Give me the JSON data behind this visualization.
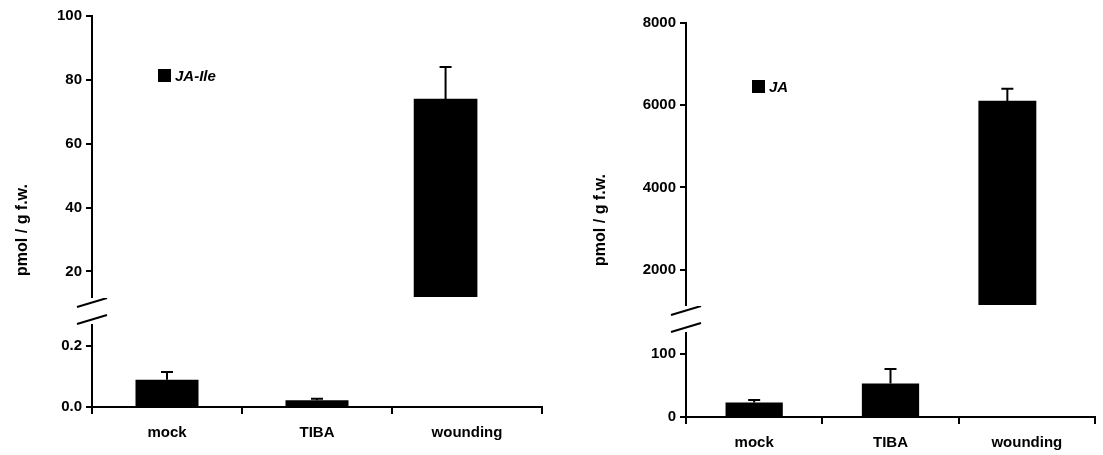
{
  "chart_data": [
    {
      "type": "bar",
      "ylabel": "pmol / g f.w.",
      "categories": [
        "mock",
        "TIBA",
        "wounding"
      ],
      "legend": "top left",
      "tick_labels": "y",
      "ylim": [
        12,
        100
      ],
      "yticks": [
        20,
        40,
        60,
        80,
        100
      ],
      "series": [
        {
          "name": "JA-Ile",
          "color": "#000000",
          "values": [
            null,
            null,
            74
          ],
          "errors": [
            null,
            null,
            [
              74,
              84
            ]
          ]
        }
      ]
    },
    {
      "type": "bar",
      "categories": [
        "mock",
        "TIBA",
        "wounding"
      ],
      "ylim": [
        0,
        0.27
      ],
      "yticks": [
        {
          "value": 0,
          "label": "0.0"
        },
        0.2
      ],
      "series": [
        {
          "color": "#000000",
          "values": [
            0.09,
            0.022,
            null
          ],
          "errors": [
            [
              0.09,
              0.115
            ],
            [
              0.022,
              0.027
            ],
            null
          ]
        }
      ]
    },
    {
      "type": "bar",
      "ylabel": "pmol / g f.w.",
      "categories": [
        "mock",
        "TIBA",
        "wounding"
      ],
      "legend": "top left",
      "tick_labels": "y",
      "ylim": [
        1140,
        8000
      ],
      "yticks": [
        2000,
        4000,
        6000,
        8000
      ],
      "series": [
        {
          "name": "JA",
          "color": "#000000",
          "values": [
            null,
            null,
            6100
          ],
          "errors": [
            null,
            null,
            [
              6100,
              6400
            ]
          ]
        }
      ]
    },
    {
      "type": "bar",
      "categories": [
        "mock",
        "TIBA",
        "wounding"
      ],
      "ylim": [
        0,
        133
      ],
      "yticks": [
        0,
        100
      ],
      "series": [
        {
          "color": "#000000",
          "values": [
            23,
            53,
            null
          ],
          "errors": [
            [
              23,
              27
            ],
            [
              53,
              76
            ],
            null
          ]
        }
      ]
    }
  ]
}
